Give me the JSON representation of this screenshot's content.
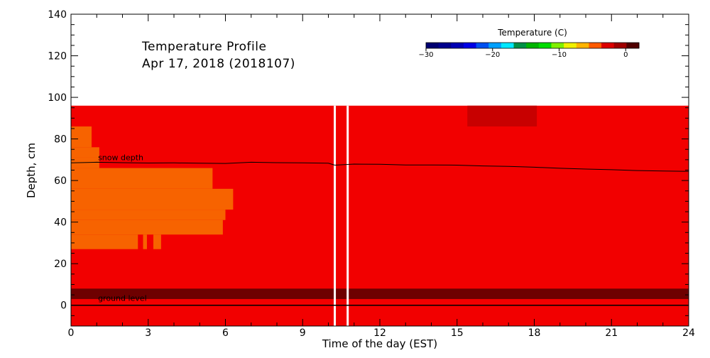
{
  "chart_data": {
    "type": "heatmap",
    "title": "Temperature Profile",
    "subtitle": "Apr 17, 2018 (2018107)",
    "xlabel": "Time of the day (EST)",
    "ylabel": "Depth, cm",
    "xlim": [
      0,
      24
    ],
    "ylim": [
      -10,
      140
    ],
    "x_ticks": [
      0,
      3,
      6,
      9,
      12,
      15,
      18,
      21,
      24
    ],
    "y_ticks": [
      0,
      20,
      40,
      60,
      80,
      100,
      120,
      140
    ],
    "colorbar": {
      "title": "Temperature (C)",
      "range": [
        -30,
        2
      ],
      "ticks": [
        -30,
        -20,
        -10,
        0
      ],
      "tick_labels": [
        "−30",
        "−20",
        "−10",
        "0"
      ],
      "colors": [
        "#000070",
        "#00008c",
        "#0000b4",
        "#0000e6",
        "#0050f0",
        "#00a0ff",
        "#00e8ff",
        "#009046",
        "#00b400",
        "#00dc00",
        "#80f000",
        "#f0f000",
        "#ffb400",
        "#ff5a00",
        "#dc0000",
        "#a00000",
        "#500000"
      ]
    },
    "field": {
      "background": {
        "temperature": 0,
        "color": "#f20000",
        "depth_range": [
          -10,
          96
        ],
        "time_range": [
          0,
          24
        ]
      },
      "regions": [
        {
          "label": "ground layer",
          "color": "#6e0000",
          "x": [
            0,
            24
          ],
          "y": [
            3,
            8
          ]
        },
        {
          "label": "warm top patch",
          "color": "#c80000",
          "x": [
            15.4,
            18.1
          ],
          "y": [
            86,
            96
          ]
        },
        {
          "label": "cool near-surface region",
          "color": "#f76300",
          "x": [
            0,
            0.8
          ],
          "y": [
            76,
            86
          ]
        },
        {
          "label": "cool near-surface region",
          "color": "#f76300",
          "x": [
            0,
            1.1
          ],
          "y": [
            71,
            76
          ]
        },
        {
          "label": "cool near-surface region",
          "color": "#f76300",
          "x": [
            0,
            1.1
          ],
          "y": [
            66,
            71
          ]
        },
        {
          "label": "cool near-surface region",
          "color": "#f76300",
          "x": [
            0,
            5.5
          ],
          "y": [
            56,
            66
          ]
        },
        {
          "label": "cool near-surface region",
          "color": "#f76300",
          "x": [
            0,
            6.3
          ],
          "y": [
            46,
            56
          ]
        },
        {
          "label": "cool near-surface region",
          "color": "#f76300",
          "x": [
            0,
            6.0
          ],
          "y": [
            41,
            46
          ]
        },
        {
          "label": "cool near-surface region",
          "color": "#f76300",
          "x": [
            0,
            5.9
          ],
          "y": [
            34,
            41
          ]
        },
        {
          "label": "cool near-surface region",
          "color": "#f76300",
          "x": [
            0,
            2.6
          ],
          "y": [
            27,
            34
          ]
        },
        {
          "label": "cool near-surface region",
          "color": "#f76300",
          "x": [
            2.8,
            2.95
          ],
          "y": [
            27,
            34
          ]
        },
        {
          "label": "cool near-surface region",
          "color": "#f76300",
          "x": [
            3.2,
            3.5
          ],
          "y": [
            27,
            34
          ]
        }
      ],
      "missing_data_times": [
        10.25,
        10.75
      ],
      "ground_level_depth": 0
    },
    "series": [
      {
        "name": "snow depth",
        "x": [
          0,
          1,
          2,
          3,
          4,
          5,
          6,
          7,
          8,
          9,
          10,
          10.25,
          11,
          12,
          13,
          14,
          15,
          16,
          17,
          18,
          19,
          20,
          21,
          22,
          23,
          24
        ],
        "values": [
          68.5,
          68.8,
          68.6,
          68.4,
          68.5,
          68.3,
          68.2,
          68.8,
          68.6,
          68.5,
          68.3,
          67.4,
          67.9,
          67.8,
          67.5,
          67.5,
          67.4,
          67.0,
          66.8,
          66.4,
          65.9,
          65.5,
          65.2,
          64.8,
          64.6,
          64.4
        ]
      }
    ],
    "annotations": [
      "snow depth",
      "ground level"
    ]
  }
}
